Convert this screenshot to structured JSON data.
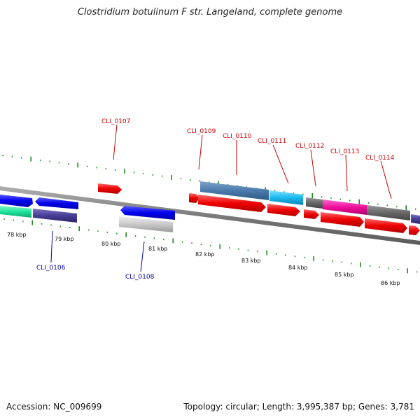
{
  "title": "Clostridium botulinum F str. Langeland, complete genome",
  "footer": {
    "accession": "Accession: NC_009699",
    "summary": "Topology: circular; Length: 3,995,387 bp; Genes: 3,781"
  },
  "colors": {
    "backbone": "#808080",
    "tick": "#1f8a1f",
    "label_above": "#cc0000",
    "label_below": "#0000aa"
  },
  "kbp_labels": [
    "78 kbp",
    "79 kbp",
    "80 kbp",
    "81 kbp",
    "82 kbp",
    "83 kbp",
    "84 kbp",
    "85 kbp",
    "86 kbp"
  ],
  "gene_labels": {
    "cli_0106": "CLI_0106",
    "cli_0107": "CLI_0107",
    "cli_0108": "CLI_0108",
    "cli_0109": "CLI_0109",
    "cli_0110": "CLI_0110",
    "cli_0111": "CLI_0111",
    "cli_0112": "CLI_0112",
    "cli_0113": "CLI_0113",
    "cli_0114": "CLI_0114"
  }
}
